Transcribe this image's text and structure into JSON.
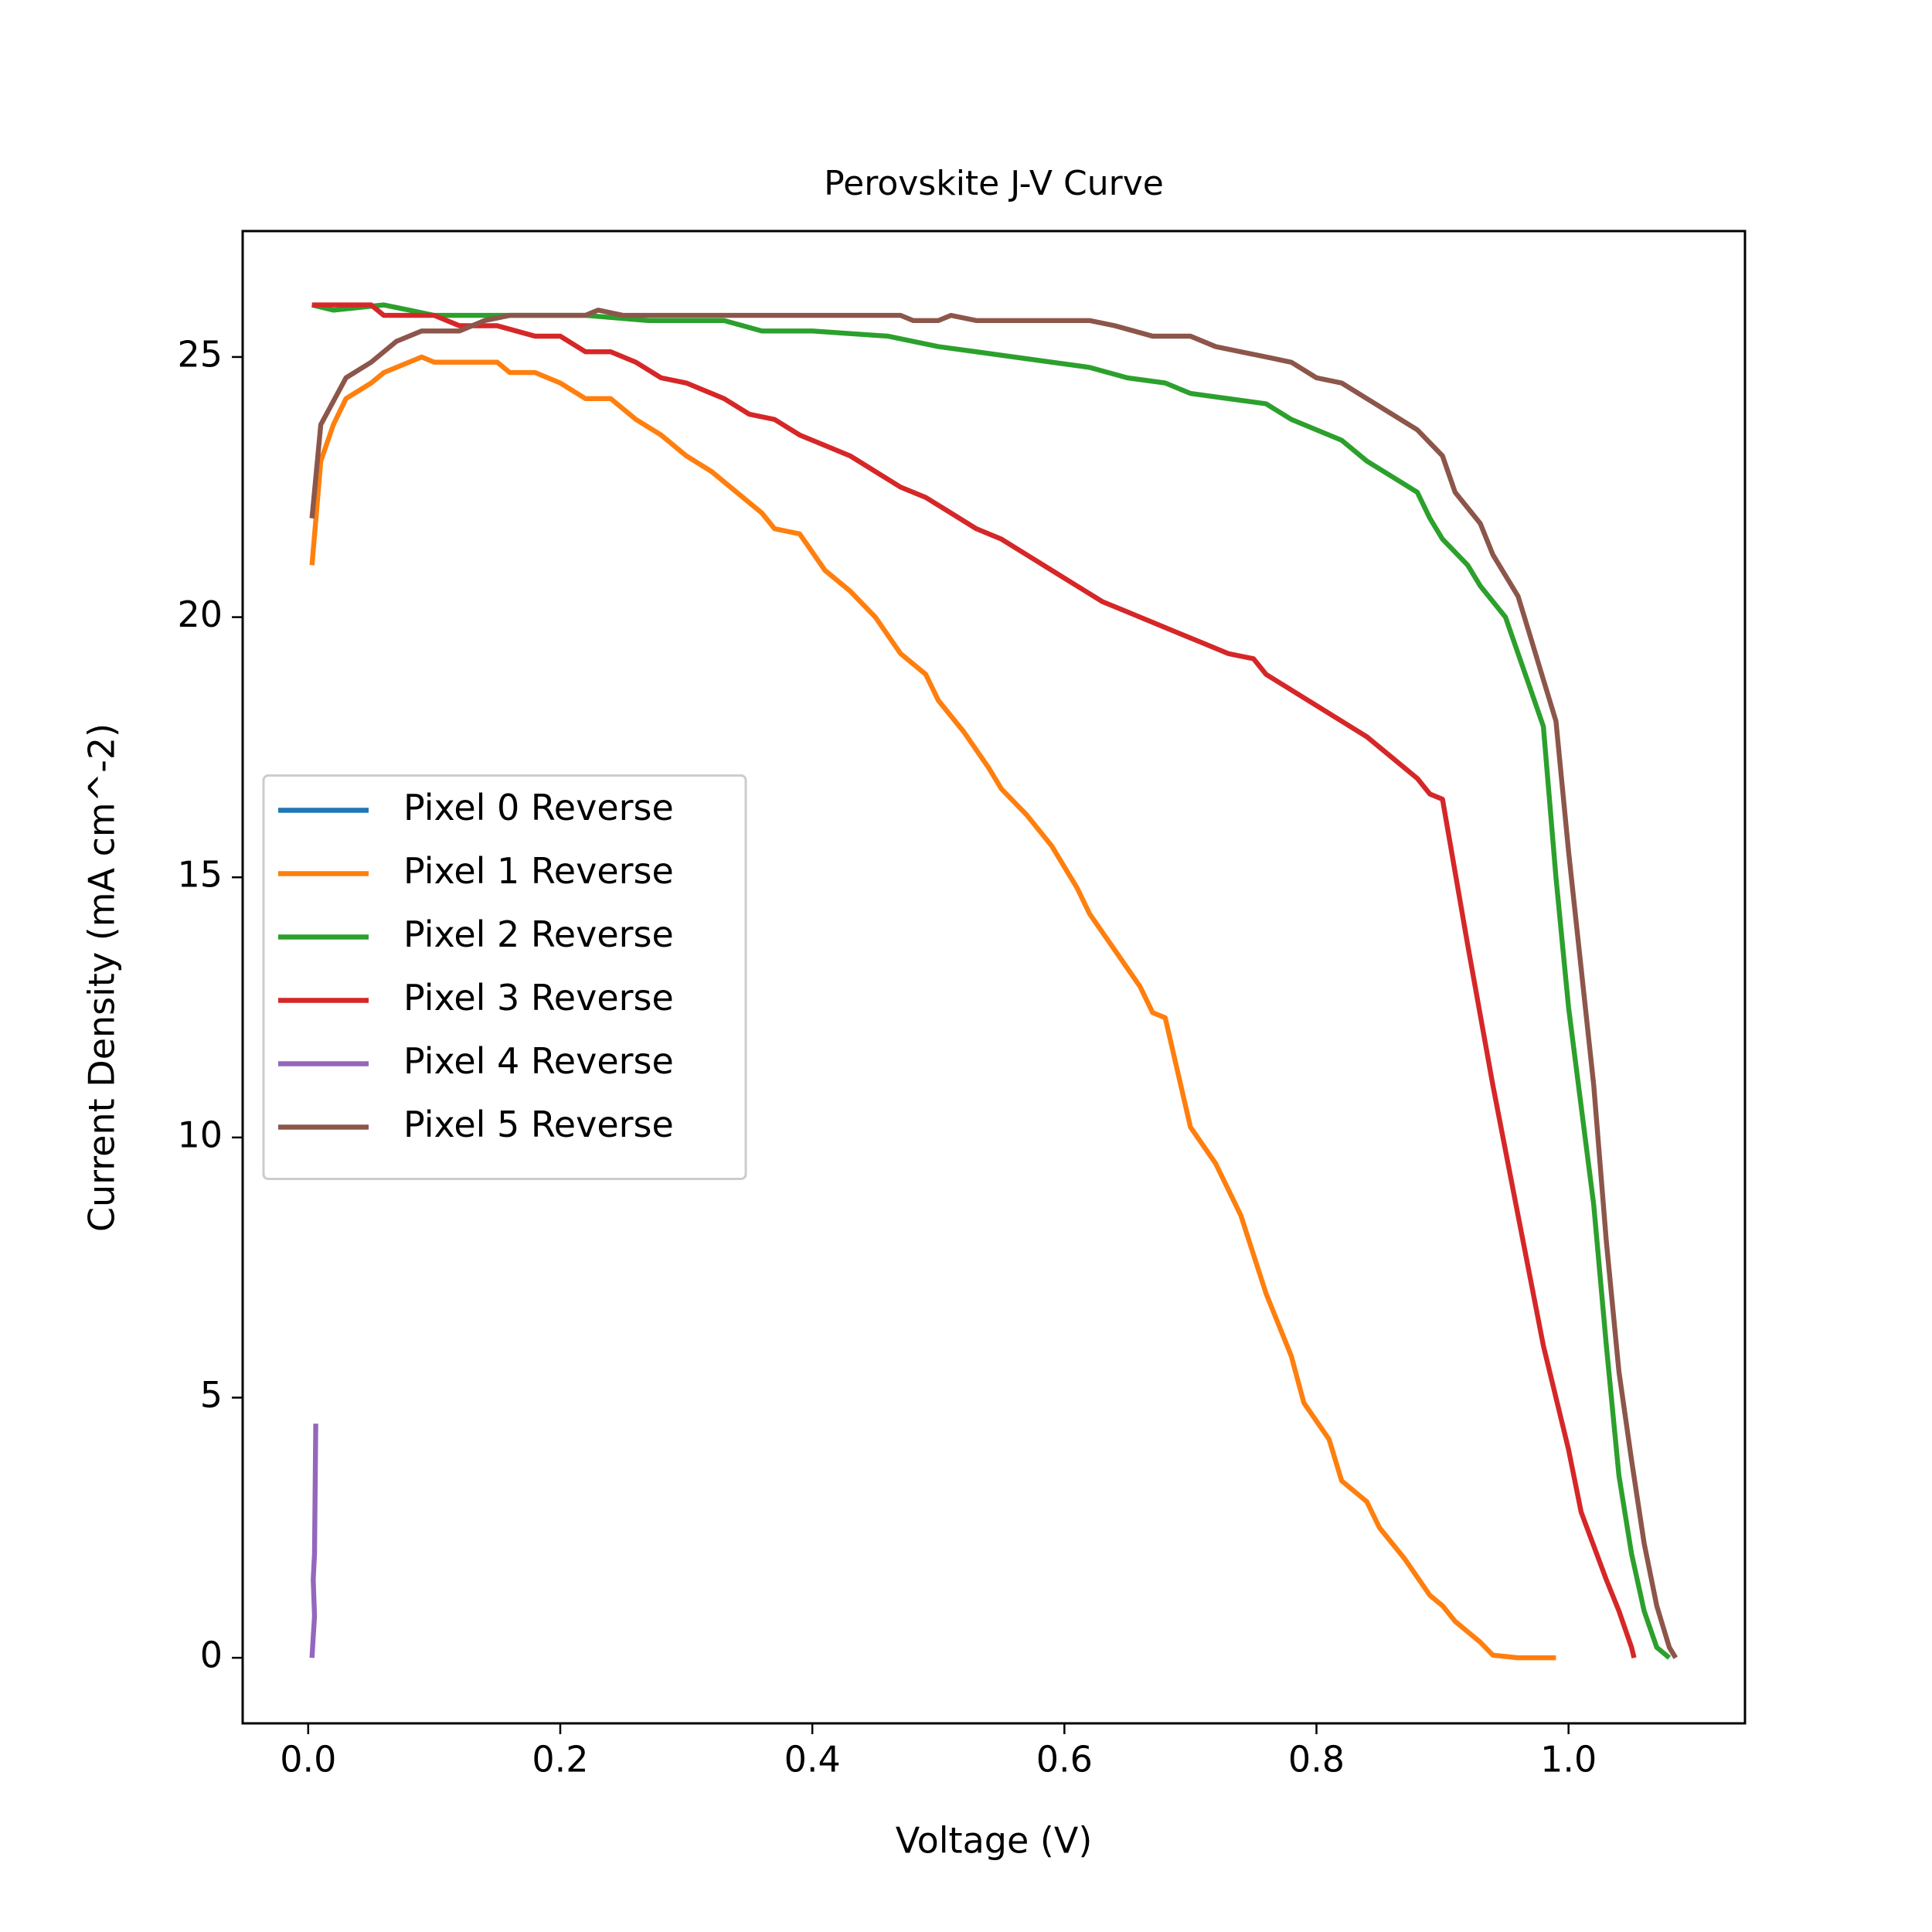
{
  "chart_data": {
    "type": "line",
    "title": "Perovskite J-V Curve",
    "x_label": "Voltage (V)",
    "y_label": "Current Density (mA cm^-2)",
    "xlim": [
      -0.052,
      1.14
    ],
    "ylim": [
      -1.26,
      27.42
    ],
    "xticks": [
      {
        "value": 0,
        "label": "0.0"
      },
      0.2,
      0.4,
      0.6,
      0.8,
      {
        "value": 1,
        "label": "1.0"
      }
    ],
    "yticks": [
      0,
      5,
      10,
      15,
      20,
      25
    ],
    "grid": false,
    "legend": "center left",
    "series": [
      {
        "name": "Pixel 0 Reverse",
        "color": "#1f77b4",
        "x": [],
        "values": []
      },
      {
        "name": "Pixel 1 Reverse",
        "color": "#ff7f0e",
        "x": [
          0.003,
          0.01,
          0.02,
          0.03,
          0.05,
          0.06,
          0.08,
          0.09,
          0.1,
          0.15,
          0.16,
          0.18,
          0.2,
          0.22,
          0.24,
          0.26,
          0.28,
          0.3,
          0.32,
          0.34,
          0.36,
          0.37,
          0.39,
          0.41,
          0.43,
          0.45,
          0.47,
          0.49,
          0.5,
          0.52,
          0.54,
          0.55,
          0.57,
          0.59,
          0.61,
          0.62,
          0.64,
          0.66,
          0.67,
          0.68,
          0.7,
          0.72,
          0.74,
          0.76,
          0.78,
          0.79,
          0.81,
          0.82,
          0.84,
          0.85,
          0.87,
          0.89,
          0.9,
          0.91,
          0.93,
          0.94,
          0.96,
          0.99
        ],
        "values": [
          21.0,
          23,
          23.7,
          24.2,
          24.5,
          24.7,
          24.9,
          25.0,
          24.9,
          24.9,
          24.7,
          24.7,
          24.5,
          24.2,
          24.2,
          23.8,
          23.5,
          23.1,
          22.8,
          22.4,
          22.0,
          21.7,
          21.6,
          20.9,
          20.5,
          20.0,
          19.3,
          18.9,
          18.4,
          17.8,
          17.1,
          16.7,
          16.2,
          15.6,
          14.8,
          14.3,
          13.6,
          12.9,
          12.4,
          12.3,
          10.2,
          9.5,
          8.5,
          7.0,
          5.8,
          4.9,
          4.2,
          3.4,
          3.0,
          2.5,
          1.9,
          1.2,
          1.0,
          0.7,
          0.3,
          0.05,
          0,
          0
        ]
      },
      {
        "name": "Pixel 2 Reverse",
        "color": "#2ca02c",
        "x": [
          0.003,
          0.02,
          0.06,
          0.08,
          0.1,
          0.15,
          0.22,
          0.27,
          0.33,
          0.36,
          0.4,
          0.46,
          0.48,
          0.5,
          0.53,
          0.56,
          0.59,
          0.62,
          0.65,
          0.68,
          0.7,
          0.73,
          0.76,
          0.78,
          0.8,
          0.82,
          0.84,
          0.86,
          0.88,
          0.89,
          0.9,
          0.92,
          0.93,
          0.95,
          0.96,
          0.97,
          0.98,
          0.99,
          1.0,
          1.02,
          1.03,
          1.04,
          1.05,
          1.06,
          1.07,
          1.08
        ],
        "values": [
          26.0,
          25.9,
          26.0,
          25.9,
          25.8,
          25.8,
          25.8,
          25.7,
          25.7,
          25.5,
          25.5,
          25.4,
          25.3,
          25.2,
          25.1,
          25.0,
          24.9,
          24.8,
          24.6,
          24.5,
          24.3,
          24.2,
          24.1,
          23.8,
          23.6,
          23.4,
          23.0,
          22.7,
          22.4,
          21.9,
          21.5,
          21.0,
          20.6,
          20.0,
          19.3,
          18.6,
          17.9,
          15.0,
          12.5,
          8.7,
          6.0,
          3.5,
          2.0,
          0.9,
          0.2,
          0
        ]
      },
      {
        "name": "Pixel 3 Reverse",
        "color": "#d62728",
        "x": [
          0.003,
          0.05,
          0.06,
          0.1,
          0.12,
          0.15,
          0.18,
          0.2,
          0.22,
          0.24,
          0.26,
          0.28,
          0.3,
          0.33,
          0.35,
          0.37,
          0.39,
          0.41,
          0.43,
          0.45,
          0.47,
          0.49,
          0.51,
          0.53,
          0.55,
          0.57,
          0.59,
          0.61,
          0.63,
          0.65,
          0.67,
          0.69,
          0.71,
          0.73,
          0.75,
          0.76,
          0.78,
          0.8,
          0.82,
          0.84,
          0.86,
          0.88,
          0.89,
          0.9,
          0.92,
          0.94,
          0.96,
          0.98,
          1.0,
          1.01,
          1.03,
          1.04,
          1.05,
          1.052
        ],
        "values": [
          26.0,
          26.0,
          25.8,
          25.8,
          25.6,
          25.6,
          25.4,
          25.4,
          25.1,
          25.1,
          24.9,
          24.6,
          24.5,
          24.2,
          23.9,
          23.8,
          23.5,
          23.3,
          23.1,
          22.8,
          22.5,
          22.3,
          22.0,
          21.7,
          21.5,
          21.2,
          20.9,
          20.6,
          20.3,
          20.1,
          19.9,
          19.7,
          19.5,
          19.3,
          19.2,
          18.9,
          18.6,
          18.3,
          18.0,
          17.7,
          17.3,
          16.9,
          16.6,
          16.5,
          13.7,
          11.0,
          8.5,
          6.0,
          4.0,
          2.8,
          1.5,
          0.9,
          0.2,
          0
        ]
      },
      {
        "name": "Pixel 4 Reverse",
        "color": "#9467bd",
        "x": [
          0.003,
          0.004,
          0.005,
          0.004,
          0.005,
          0.006
        ],
        "values": [
          0,
          0.4,
          0.8,
          1.5,
          2.0,
          4.5
        ]
      },
      {
        "name": "Pixel 5 Reverse",
        "color": "#8c564b",
        "x": [
          0.003,
          0.01,
          0.03,
          0.05,
          0.07,
          0.09,
          0.12,
          0.14,
          0.16,
          0.22,
          0.23,
          0.25,
          0.45,
          0.47,
          0.48,
          0.5,
          0.51,
          0.53,
          0.62,
          0.64,
          0.67,
          0.7,
          0.72,
          0.74,
          0.76,
          0.78,
          0.8,
          0.82,
          0.84,
          0.86,
          0.88,
          0.9,
          0.91,
          0.93,
          0.94,
          0.96,
          0.97,
          0.98,
          0.99,
          1.0,
          1.02,
          1.03,
          1.04,
          1.05,
          1.06,
          1.07,
          1.08,
          1.085
        ],
        "values": [
          21.9,
          23.7,
          24.6,
          24.9,
          25.3,
          25.5,
          25.5,
          25.7,
          25.8,
          25.8,
          25.9,
          25.8,
          25.8,
          25.8,
          25.7,
          25.7,
          25.8,
          25.7,
          25.7,
          25.6,
          25.4,
          25.4,
          25.2,
          25.1,
          25.0,
          24.9,
          24.6,
          24.5,
          24.2,
          23.9,
          23.6,
          23.1,
          22.4,
          21.8,
          21.2,
          20.4,
          19.6,
          18.8,
          18.0,
          15.5,
          11.0,
          8.0,
          5.5,
          3.8,
          2.2,
          1.0,
          0.2,
          0
        ]
      }
    ]
  }
}
